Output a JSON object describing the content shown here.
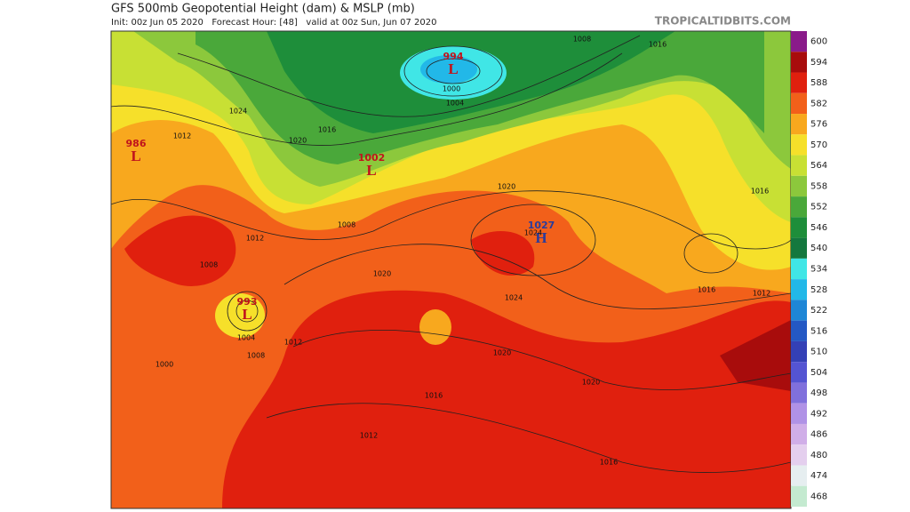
{
  "header": {
    "title": "GFS 500mb Geopotential Height (dam) & MSLP (mb)",
    "subtitle": "Init: 00z Jun 05 2020   Forecast Hour: [48]   valid at 00z Sun, Jun 07 2020",
    "watermark": "TROPICALTIDBITS.COM"
  },
  "colorbar": {
    "levels": [
      600,
      594,
      588,
      582,
      576,
      570,
      564,
      558,
      552,
      546,
      540,
      534,
      528,
      522,
      516,
      510,
      504,
      498,
      492,
      486,
      480,
      474,
      468
    ],
    "colors": [
      "#8a1a8a",
      "#a80c0c",
      "#e0200e",
      "#f2601a",
      "#f8a81e",
      "#f6e02a",
      "#c8e034",
      "#8cc83c",
      "#4aa83a",
      "#1e8e3a",
      "#14783e",
      "#40e6e6",
      "#22b8e8",
      "#1e86d6",
      "#2458c4",
      "#3440b6",
      "#5454d2",
      "#8070dc",
      "#b092e6",
      "#d0aee8",
      "#e4cfee",
      "#e6eef0",
      "#c4ead0"
    ]
  },
  "centers": [
    {
      "value": 994,
      "letter": "L"
    },
    {
      "value": 1002,
      "letter": "L"
    },
    {
      "value": 986,
      "letter": "L"
    },
    {
      "value": 993,
      "letter": "L"
    },
    {
      "value": 1027,
      "letter": "H"
    }
  ],
  "isobar_labels": [
    1008,
    1016,
    1024,
    1020,
    1016,
    1012,
    1000,
    1004,
    1008,
    1012,
    1020,
    1024,
    1020,
    1016,
    1020,
    1016,
    1012,
    1016,
    1004,
    1000,
    1008,
    1012,
    1008,
    1020,
    1024,
    1016,
    1012
  ]
}
